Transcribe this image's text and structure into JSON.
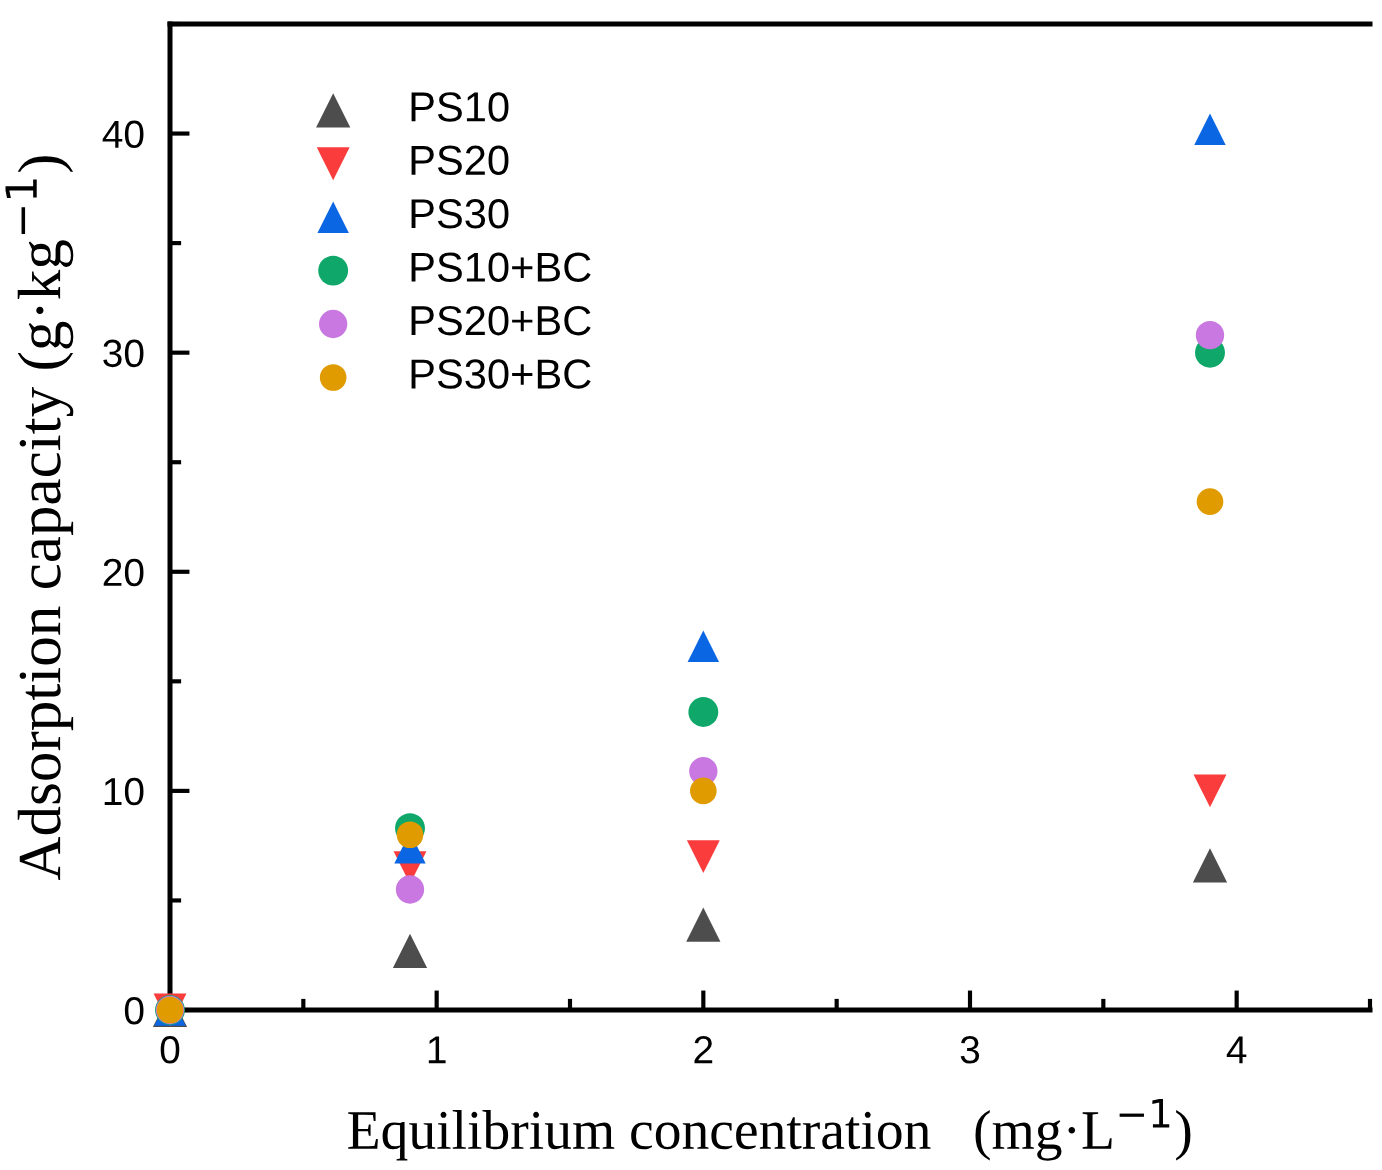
{
  "chart_data": {
    "type": "scatter",
    "xlabel": "Equilibrium concentration   (mg·L$^{−1}$)",
    "ylabel": "Adsorption capacity (g·kg$^{−1}$)",
    "x": [
      0,
      0.9,
      2,
      3.9
    ],
    "series": [
      {
        "name": "PS10",
        "color": "#4d4d4d",
        "marker": "triangle",
        "values": [
          0,
          2.7,
          3.9,
          6.6
        ]
      },
      {
        "name": "PS20",
        "color": "#fa3c3c",
        "marker": "triangle_down",
        "values": [
          0,
          6.5,
          7.0,
          10.0
        ]
      },
      {
        "name": "PS30",
        "color": "#0b66e3",
        "marker": "triangle",
        "values": [
          0,
          7.4,
          16.6,
          40.2
        ]
      },
      {
        "name": "PS10+BC",
        "color": "#0fa86a",
        "marker": "circle",
        "values": [
          0,
          8.3,
          13.6,
          30.0
        ]
      },
      {
        "name": "PS20+BC",
        "color": "#c878e0",
        "marker": "circle",
        "values": [
          0,
          5.5,
          10.9,
          30.8
        ]
      },
      {
        "name": "PS30+BC",
        "color": "#e09b00",
        "marker": "circle",
        "values": [
          0,
          8.0,
          10.0,
          23.2
        ]
      }
    ],
    "xlim": [
      0,
      4.5
    ],
    "xticks": [
      0,
      1,
      2,
      3,
      4
    ],
    "ylim": [
      0,
      45
    ],
    "yticks": [
      0,
      10,
      20,
      30,
      40
    ],
    "grid": false,
    "legend": "top left"
  }
}
